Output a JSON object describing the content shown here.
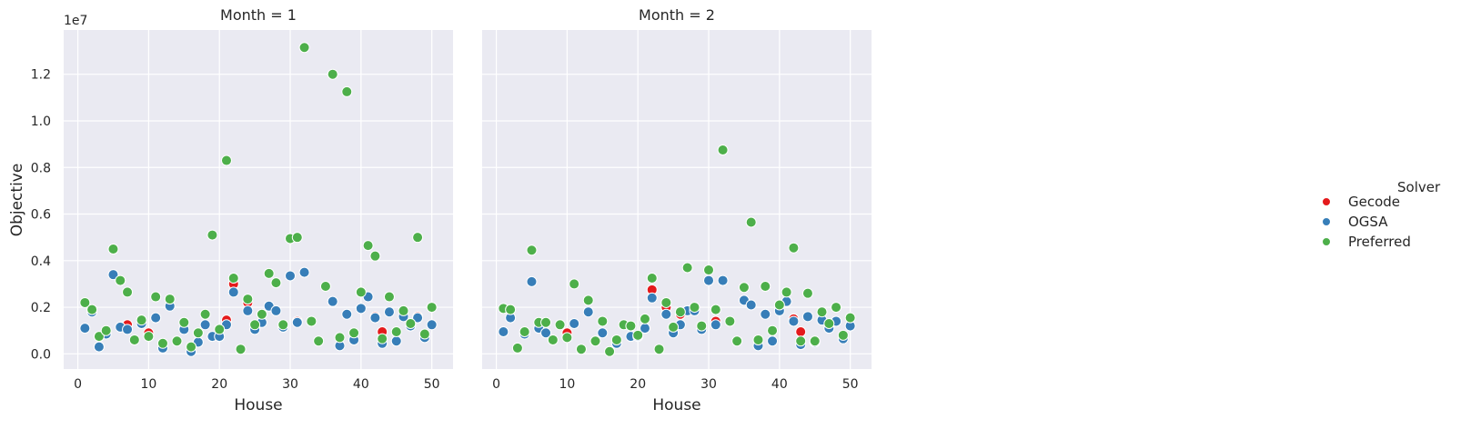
{
  "chart_data": {
    "type": "scatter",
    "exponent_label": "1e7",
    "ylabel": "Objective",
    "xlabel": "House",
    "xlim": [
      -2,
      53
    ],
    "ylim": [
      -0.065,
      1.39
    ],
    "xticks": [
      0,
      10,
      20,
      30,
      40,
      50
    ],
    "yticks": [
      0.0,
      0.2,
      0.4,
      0.6,
      0.8,
      1.0,
      1.2
    ],
    "ytick_labels": [
      "0.0",
      "0.2",
      "0.4",
      "0.6",
      "0.8",
      "1.0",
      "1.2"
    ],
    "grid": true,
    "legend": {
      "title": "Solver",
      "placement": "right",
      "entries": [
        "Gecode",
        "OGSA",
        "Preferred"
      ]
    },
    "colors": {
      "Gecode": "#e41a1c",
      "OGSA": "#377eb8",
      "Preferred": "#4daf4a",
      "panel_bg": "#eaeaf2",
      "grid": "#ffffff"
    },
    "panels": [
      {
        "title": "Month = 1",
        "series": [
          {
            "name": "Gecode",
            "points": [
              [
                7,
                0.125
              ],
              [
                10,
                0.09
              ],
              [
                21,
                0.145
              ],
              [
                22,
                0.3
              ],
              [
                24,
                0.22
              ],
              [
                31,
                0.14
              ],
              [
                42,
                0.16
              ],
              [
                43,
                0.095
              ],
              [
                48,
                0.16
              ]
            ]
          },
          {
            "name": "OGSA",
            "points": [
              [
                1,
                0.11
              ],
              [
                2,
                0.18
              ],
              [
                3,
                0.03
              ],
              [
                4,
                0.085
              ],
              [
                5,
                0.34
              ],
              [
                6,
                0.115
              ],
              [
                7,
                0.105
              ],
              [
                9,
                0.13
              ],
              [
                11,
                0.155
              ],
              [
                12,
                0.025
              ],
              [
                13,
                0.205
              ],
              [
                15,
                0.105
              ],
              [
                16,
                0.01
              ],
              [
                17,
                0.05
              ],
              [
                18,
                0.125
              ],
              [
                19,
                0.075
              ],
              [
                20,
                0.075
              ],
              [
                21,
                0.125
              ],
              [
                22,
                0.265
              ],
              [
                24,
                0.185
              ],
              [
                25,
                0.105
              ],
              [
                26,
                0.135
              ],
              [
                27,
                0.205
              ],
              [
                28,
                0.185
              ],
              [
                29,
                0.115
              ],
              [
                30,
                0.335
              ],
              [
                31,
                0.135
              ],
              [
                32,
                0.35
              ],
              [
                36,
                0.225
              ],
              [
                37,
                0.035
              ],
              [
                38,
                0.17
              ],
              [
                39,
                0.06
              ],
              [
                40,
                0.195
              ],
              [
                41,
                0.245
              ],
              [
                42,
                0.155
              ],
              [
                43,
                0.045
              ],
              [
                44,
                0.18
              ],
              [
                45,
                0.055
              ],
              [
                46,
                0.16
              ],
              [
                47,
                0.12
              ],
              [
                48,
                0.155
              ],
              [
                49,
                0.07
              ],
              [
                50,
                0.125
              ]
            ]
          },
          {
            "name": "Preferred",
            "points": [
              [
                1,
                0.22
              ],
              [
                2,
                0.19
              ],
              [
                3,
                0.075
              ],
              [
                4,
                0.1
              ],
              [
                5,
                0.45
              ],
              [
                6,
                0.315
              ],
              [
                7,
                0.265
              ],
              [
                8,
                0.06
              ],
              [
                9,
                0.145
              ],
              [
                10,
                0.075
              ],
              [
                11,
                0.245
              ],
              [
                12,
                0.045
              ],
              [
                13,
                0.235
              ],
              [
                14,
                0.055
              ],
              [
                15,
                0.135
              ],
              [
                16,
                0.03
              ],
              [
                17,
                0.09
              ],
              [
                18,
                0.17
              ],
              [
                19,
                0.51
              ],
              [
                20,
                0.105
              ],
              [
                21,
                0.83
              ],
              [
                22,
                0.325
              ],
              [
                23,
                0.02
              ],
              [
                24,
                0.235
              ],
              [
                25,
                0.125
              ],
              [
                26,
                0.17
              ],
              [
                27,
                0.345
              ],
              [
                28,
                0.305
              ],
              [
                29,
                0.125
              ],
              [
                30,
                0.495
              ],
              [
                31,
                0.5
              ],
              [
                32,
                1.315
              ],
              [
                33,
                0.14
              ],
              [
                34,
                0.055
              ],
              [
                35,
                0.29
              ],
              [
                36,
                1.2
              ],
              [
                37,
                0.07
              ],
              [
                38,
                1.125
              ],
              [
                39,
                0.09
              ],
              [
                40,
                0.265
              ],
              [
                41,
                0.465
              ],
              [
                42,
                0.42
              ],
              [
                43,
                0.065
              ],
              [
                44,
                0.245
              ],
              [
                45,
                0.095
              ],
              [
                46,
                0.185
              ],
              [
                47,
                0.13
              ],
              [
                48,
                0.5
              ],
              [
                49,
                0.085
              ],
              [
                50,
                0.2
              ]
            ]
          }
        ]
      },
      {
        "title": "Month = 2",
        "series": [
          {
            "name": "Gecode",
            "points": [
              [
                10,
                0.09
              ],
              [
                22,
                0.275
              ],
              [
                24,
                0.2
              ],
              [
                26,
                0.17
              ],
              [
                31,
                0.14
              ],
              [
                42,
                0.15
              ],
              [
                43,
                0.095
              ]
            ]
          },
          {
            "name": "OGSA",
            "points": [
              [
                1,
                0.095
              ],
              [
                2,
                0.155
              ],
              [
                4,
                0.085
              ],
              [
                5,
                0.31
              ],
              [
                6,
                0.11
              ],
              [
                7,
                0.09
              ],
              [
                11,
                0.13
              ],
              [
                13,
                0.18
              ],
              [
                15,
                0.09
              ],
              [
                17,
                0.045
              ],
              [
                19,
                0.075
              ],
              [
                20,
                0.075
              ],
              [
                21,
                0.11
              ],
              [
                22,
                0.24
              ],
              [
                24,
                0.17
              ],
              [
                25,
                0.09
              ],
              [
                26,
                0.125
              ],
              [
                27,
                0.185
              ],
              [
                28,
                0.185
              ],
              [
                29,
                0.105
              ],
              [
                30,
                0.315
              ],
              [
                31,
                0.125
              ],
              [
                32,
                0.315
              ],
              [
                35,
                0.23
              ],
              [
                36,
                0.21
              ],
              [
                37,
                0.035
              ],
              [
                38,
                0.17
              ],
              [
                39,
                0.055
              ],
              [
                40,
                0.185
              ],
              [
                41,
                0.225
              ],
              [
                42,
                0.14
              ],
              [
                43,
                0.04
              ],
              [
                44,
                0.16
              ],
              [
                45,
                0.05
              ],
              [
                46,
                0.145
              ],
              [
                47,
                0.11
              ],
              [
                48,
                0.14
              ],
              [
                49,
                0.065
              ],
              [
                50,
                0.12
              ]
            ]
          },
          {
            "name": "Preferred",
            "points": [
              [
                1,
                0.195
              ],
              [
                2,
                0.19
              ],
              [
                3,
                0.025
              ],
              [
                4,
                0.095
              ],
              [
                5,
                0.445
              ],
              [
                6,
                0.135
              ],
              [
                7,
                0.135
              ],
              [
                8,
                0.06
              ],
              [
                9,
                0.125
              ],
              [
                10,
                0.07
              ],
              [
                11,
                0.3
              ],
              [
                12,
                0.02
              ],
              [
                13,
                0.23
              ],
              [
                14,
                0.055
              ],
              [
                15,
                0.14
              ],
              [
                16,
                0.01
              ],
              [
                17,
                0.06
              ],
              [
                18,
                0.125
              ],
              [
                19,
                0.12
              ],
              [
                20,
                0.08
              ],
              [
                21,
                0.15
              ],
              [
                22,
                0.325
              ],
              [
                23,
                0.02
              ],
              [
                24,
                0.22
              ],
              [
                25,
                0.115
              ],
              [
                26,
                0.18
              ],
              [
                27,
                0.37
              ],
              [
                28,
                0.2
              ],
              [
                29,
                0.12
              ],
              [
                30,
                0.36
              ],
              [
                31,
                0.19
              ],
              [
                32,
                0.875
              ],
              [
                33,
                0.14
              ],
              [
                34,
                0.055
              ],
              [
                35,
                0.285
              ],
              [
                36,
                0.565
              ],
              [
                37,
                0.06
              ],
              [
                38,
                0.29
              ],
              [
                39,
                0.1
              ],
              [
                40,
                0.21
              ],
              [
                41,
                0.265
              ],
              [
                42,
                0.455
              ],
              [
                43,
                0.055
              ],
              [
                44,
                0.26
              ],
              [
                45,
                0.055
              ],
              [
                46,
                0.18
              ],
              [
                47,
                0.13
              ],
              [
                48,
                0.2
              ],
              [
                49,
                0.08
              ],
              [
                50,
                0.155
              ]
            ]
          }
        ]
      }
    ]
  }
}
